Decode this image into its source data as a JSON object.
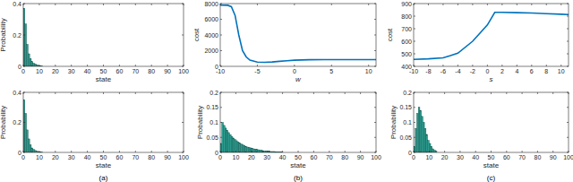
{
  "chart_data": [
    {
      "type": "histogram",
      "y_label": "Probability",
      "x_label": "state",
      "bins": [
        0,
        1,
        2,
        3,
        4,
        5,
        6,
        7,
        8,
        9,
        10,
        11,
        12
      ],
      "values": [
        0.37,
        0.27,
        0.14,
        0.08,
        0.05,
        0.03,
        0.02,
        0.015,
        0.01,
        0.006,
        0.004,
        0.002
      ],
      "color": "#2a9d8f",
      "xlim": [
        0,
        100
      ],
      "xticks": [
        0,
        10,
        20,
        30,
        40,
        50,
        60,
        70,
        80,
        90,
        100
      ],
      "ylim": [
        0,
        0.4
      ],
      "yticks": [
        0,
        0.2,
        0.4
      ],
      "grid": false
    },
    {
      "type": "histogram",
      "y_label": "Probability",
      "x_label": "state",
      "caption": "(a)",
      "bins": [
        0,
        1,
        2,
        3,
        4,
        5,
        6,
        7,
        8,
        9,
        10,
        11,
        12
      ],
      "values": [
        0.35,
        0.26,
        0.15,
        0.09,
        0.05,
        0.03,
        0.02,
        0.013,
        0.008,
        0.005,
        0.003,
        0.002
      ],
      "color": "#2a9d8f",
      "xlim": [
        0,
        100
      ],
      "xticks": [
        0,
        10,
        20,
        30,
        40,
        50,
        60,
        70,
        80,
        90,
        100
      ],
      "ylim": [
        0,
        0.4
      ],
      "yticks": [
        0,
        0.2,
        0.4
      ],
      "grid": false
    },
    {
      "type": "line",
      "y_label": "cost",
      "x_label": "w",
      "x": [
        -10,
        -9,
        -8.5,
        -8,
        -7.5,
        -7,
        -6.5,
        -6,
        -5,
        -4,
        -3,
        -2,
        -1,
        0,
        2,
        4,
        6,
        8,
        10,
        11
      ],
      "values": [
        7800,
        7780,
        7600,
        6500,
        4000,
        2000,
        1200,
        800,
        550,
        520,
        560,
        640,
        720,
        790,
        840,
        850,
        850,
        850,
        850,
        850
      ],
      "color": "#0072bd",
      "xlim": [
        -10,
        11
      ],
      "xticks": [
        -10,
        -5,
        0,
        5,
        10
      ],
      "ylim": [
        0,
        8000
      ],
      "yticks": [
        0,
        2000,
        4000,
        6000,
        8000
      ],
      "grid": false
    },
    {
      "type": "histogram",
      "y_label": "Probability",
      "x_label": "state",
      "caption": "(b)",
      "bins": [
        0,
        1,
        2,
        3,
        4,
        5,
        6,
        7,
        8,
        9,
        10,
        11,
        12,
        13,
        14,
        15,
        16,
        17,
        18,
        19,
        20,
        21,
        22,
        23,
        24,
        25,
        26,
        27,
        28,
        29,
        30,
        31,
        32,
        33,
        34,
        35,
        36,
        37,
        38,
        39,
        40
      ],
      "values": [
        0.03,
        0.1,
        0.09,
        0.081,
        0.073,
        0.066,
        0.059,
        0.053,
        0.048,
        0.043,
        0.039,
        0.035,
        0.031,
        0.028,
        0.025,
        0.023,
        0.02,
        0.018,
        0.017,
        0.015,
        0.013,
        0.012,
        0.011,
        0.01,
        0.009,
        0.008,
        0.007,
        0.006,
        0.005,
        0.005,
        0.004,
        0.004,
        0.003,
        0.003,
        0.003,
        0.002,
        0.002,
        0.002,
        0.001,
        0.001
      ],
      "color": "#2a9d8f",
      "xlim": [
        0,
        100
      ],
      "xticks": [
        0,
        10,
        20,
        30,
        40,
        50,
        60,
        70,
        80,
        90,
        100
      ],
      "ylim": [
        0,
        0.2
      ],
      "yticks": [
        0,
        0.05,
        0.1,
        0.15,
        0.2
      ],
      "grid": false
    },
    {
      "type": "line",
      "y_label": "cost",
      "x_label": "s",
      "x": [
        -10,
        -8,
        -6,
        -5,
        -4,
        -2,
        0,
        1,
        2,
        4,
        6,
        8,
        10,
        11
      ],
      "values": [
        455,
        460,
        468,
        485,
        505,
        600,
        730,
        830,
        830,
        828,
        825,
        820,
        815,
        813
      ],
      "color": "#0072bd",
      "xlim": [
        -10,
        11
      ],
      "xticks": [
        -10,
        -8,
        -6,
        -4,
        -2,
        0,
        2,
        4,
        6,
        8,
        10
      ],
      "ylim": [
        400,
        900
      ],
      "yticks": [
        400,
        500,
        600,
        700,
        800,
        900
      ],
      "grid": false
    },
    {
      "type": "histogram",
      "y_label": "Probability",
      "x_label": "state",
      "caption": "(c)",
      "bins": [
        0,
        1,
        2,
        3,
        4,
        5,
        6,
        7,
        8,
        9,
        10,
        11,
        12,
        13,
        14,
        15
      ],
      "values": [
        0.02,
        0.08,
        0.13,
        0.15,
        0.14,
        0.12,
        0.1,
        0.08,
        0.06,
        0.04,
        0.03,
        0.02,
        0.012,
        0.007,
        0.004
      ],
      "color": "#2a9d8f",
      "xlim": [
        0,
        100
      ],
      "xticks": [
        0,
        10,
        20,
        30,
        40,
        50,
        60,
        70,
        80,
        90,
        100
      ],
      "ylim": [
        0,
        0.2
      ],
      "yticks": [
        0,
        0.05,
        0.1,
        0.15,
        0.2
      ],
      "grid": false
    }
  ]
}
